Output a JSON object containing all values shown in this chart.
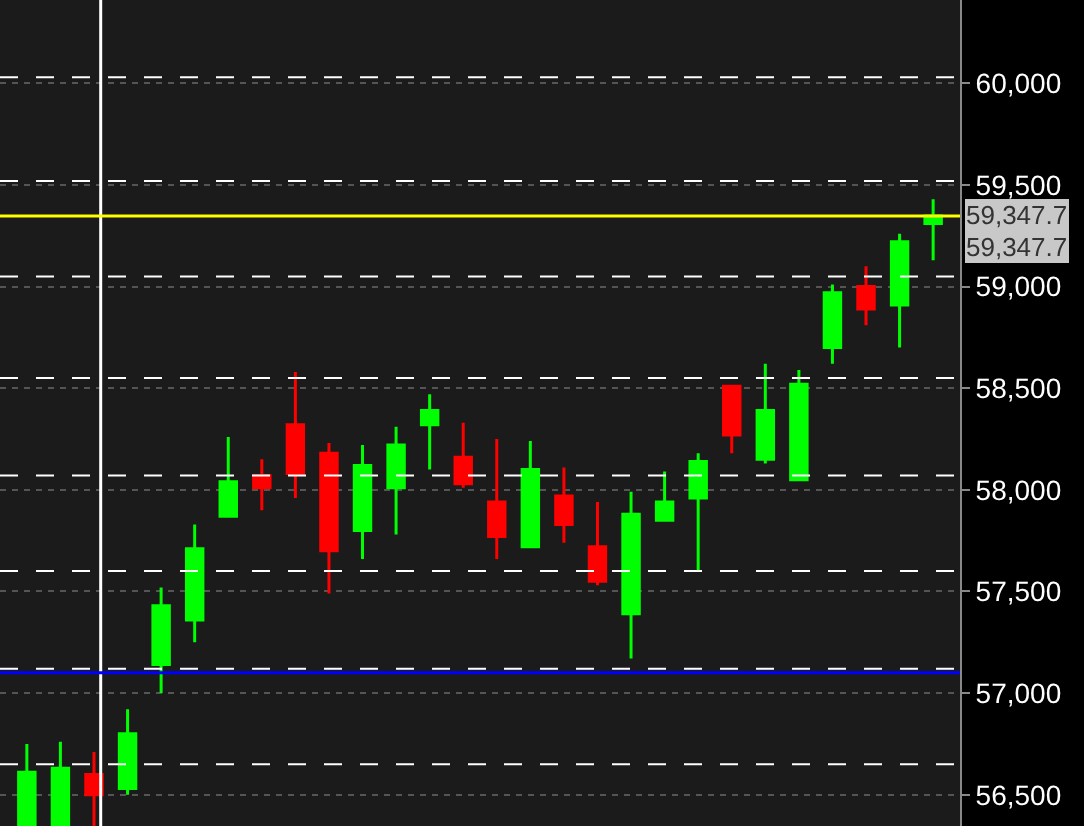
{
  "chart_data": {
    "type": "candlestick",
    "categories": [
      null,
      null,
      null,
      null,
      null,
      null,
      null,
      null,
      null,
      null,
      null,
      null,
      null,
      null,
      null,
      null,
      null,
      null,
      null,
      null,
      null,
      null,
      null,
      null,
      null,
      null,
      null,
      null
    ],
    "ohlc": [
      [
        56350,
        56750,
        56345,
        56610
      ],
      [
        56350,
        56760,
        56345,
        56630
      ],
      [
        56600,
        56710,
        56345,
        56500
      ],
      [
        56530,
        56920,
        56500,
        56800
      ],
      [
        57140,
        57520,
        57000,
        57430
      ],
      [
        57360,
        57830,
        57250,
        57710
      ],
      [
        57870,
        58260,
        57870,
        58040
      ],
      [
        58070,
        58150,
        57900,
        58010
      ],
      [
        58320,
        58580,
        57960,
        58080
      ],
      [
        58180,
        58230,
        57490,
        57700
      ],
      [
        57800,
        58220,
        57660,
        58120
      ],
      [
        58010,
        58310,
        57780,
        58220
      ],
      [
        58320,
        58470,
        58100,
        58390
      ],
      [
        58160,
        58330,
        58010,
        58030
      ],
      [
        57940,
        58250,
        57660,
        57770
      ],
      [
        57720,
        58240,
        57720,
        58100
      ],
      [
        57970,
        58110,
        57740,
        57830
      ],
      [
        57720,
        57940,
        57530,
        57550
      ],
      [
        57390,
        57990,
        57170,
        57880
      ],
      [
        57850,
        58090,
        57850,
        57940
      ],
      [
        57960,
        58180,
        57600,
        58140
      ],
      [
        58510,
        58510,
        58180,
        58270
      ],
      [
        58150,
        58620,
        58130,
        58390
      ],
      [
        58050,
        58590,
        58050,
        58520
      ],
      [
        58700,
        59010,
        58620,
        58970
      ],
      [
        59000,
        59100,
        58810,
        58890
      ],
      [
        58910,
        59260,
        58700,
        59220
      ],
      [
        59310,
        59430,
        59130,
        59347.7
      ]
    ],
    "ylim": [
      56346,
      60410
    ],
    "yticks": [
      {
        "value": 56500,
        "label": "56,500"
      },
      {
        "value": 57000,
        "label": "57,000"
      },
      {
        "value": 57500,
        "label": "57,500"
      },
      {
        "value": 58000,
        "label": "58,000"
      },
      {
        "value": 58500,
        "label": "58,500"
      },
      {
        "value": 59000,
        "label": "59,000"
      },
      {
        "value": 59500,
        "label": "59,500"
      },
      {
        "value": 60000,
        "label": "60,000"
      }
    ],
    "tick_labels": "y",
    "grid": "y",
    "ref_lines": [
      {
        "axis": "y",
        "value": 59347.7,
        "label": "59,347.7",
        "color": "#ffff00",
        "line_style": "solid"
      },
      {
        "axis": "y",
        "value": 57100,
        "color": "#0000ff",
        "line_style": "solid"
      },
      {
        "axis": "y",
        "value": 60030,
        "color": "#ffffff",
        "line_style": "dashed"
      },
      {
        "axis": "y",
        "value": 59520,
        "color": "#ffffff",
        "line_style": "dashed"
      },
      {
        "axis": "y",
        "value": 59050,
        "color": "#ffffff",
        "line_style": "dashed"
      },
      {
        "axis": "y",
        "value": 58550,
        "color": "#ffffff",
        "line_style": "dashed"
      },
      {
        "axis": "y",
        "value": 58070,
        "color": "#ffffff",
        "line_style": "dashed"
      },
      {
        "axis": "y",
        "value": 57600,
        "color": "#ffffff",
        "line_style": "dashed"
      },
      {
        "axis": "y",
        "value": 57120,
        "color": "#ffffff",
        "line_style": "dashed"
      },
      {
        "axis": "y",
        "value": 56650,
        "color": "#ffffff",
        "line_style": "dashed"
      }
    ],
    "annotations": [
      "59,347.7"
    ]
  }
}
